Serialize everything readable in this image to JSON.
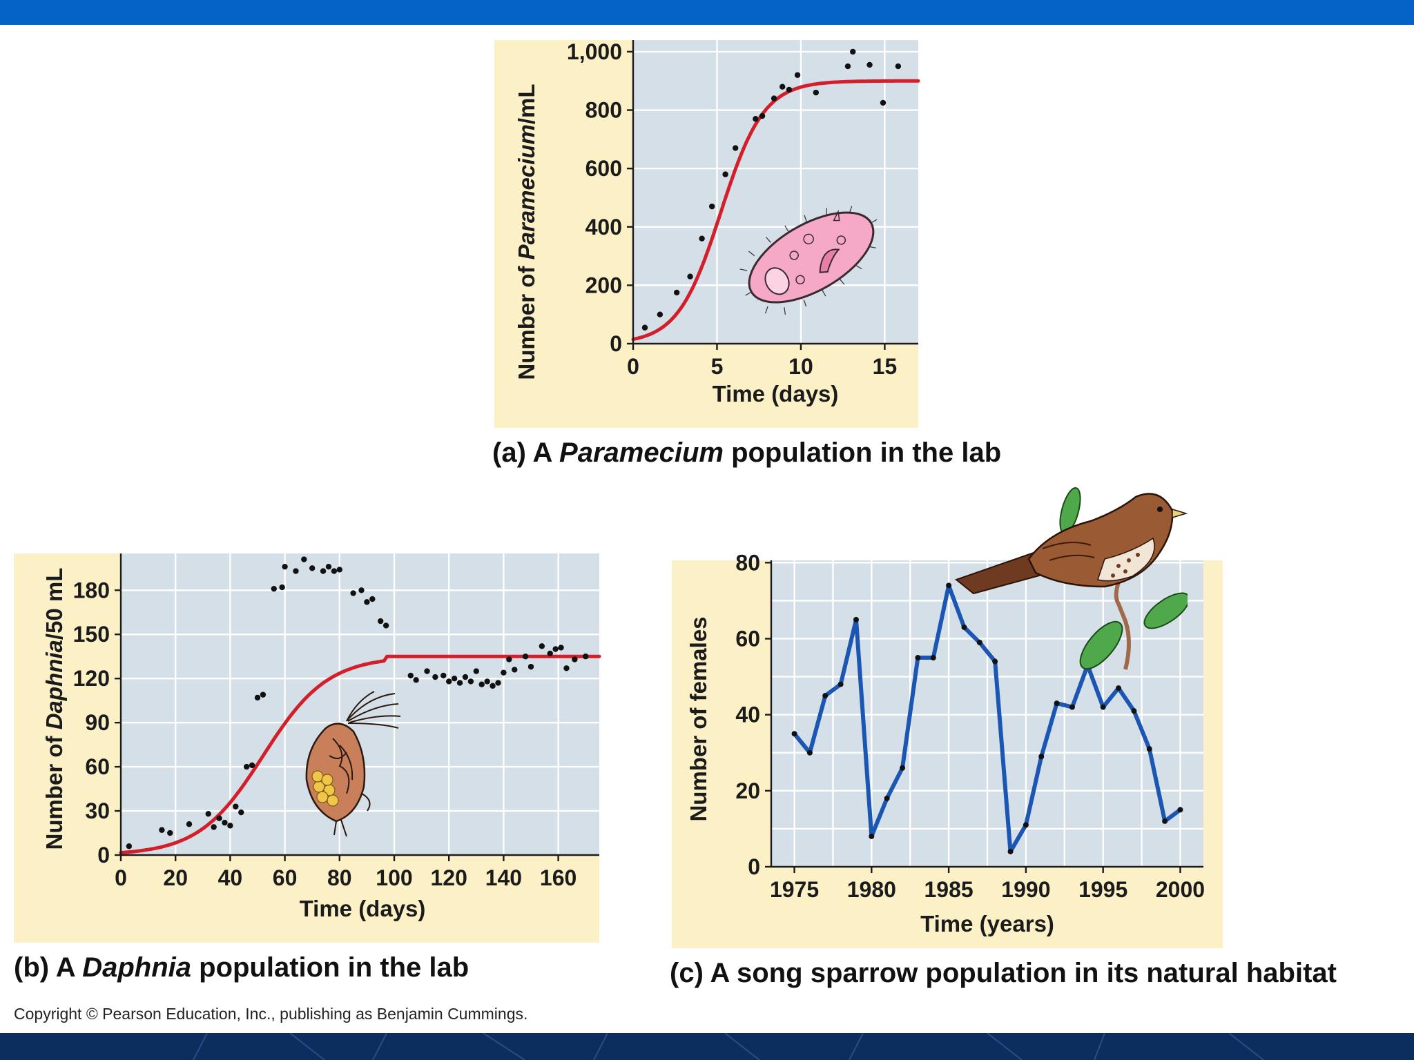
{
  "colors": {
    "top_bar": "#0563c8",
    "bottom_bar": "#0b2e5e",
    "panel_bg": "#fbf0c6",
    "plot_bg": "#d4dfe7",
    "logistic_curve": "#d21f2a",
    "sparrow_line": "#1a56b2"
  },
  "captions": {
    "a": {
      "prefix": "(a) A ",
      "italic": "Paramecium",
      "suffix": " population in the lab"
    },
    "b": {
      "prefix": "(b) A ",
      "italic": "Daphnia",
      "suffix": " population in the lab"
    },
    "c": {
      "text": "(c) A song sparrow population in its natural habitat"
    }
  },
  "copyright": "Copyright © Pearson Education, Inc., publishing as Benjamin Cummings.",
  "illustrations": [
    "paramecium-icon",
    "daphnia-icon",
    "song-sparrow-icon"
  ],
  "chart_data": [
    {
      "id": "paramecium",
      "type": "scatter",
      "title": "(a) A Paramecium population in the lab",
      "xlabel": "Time (days)",
      "ylabel": {
        "prefix": "Number of ",
        "italic": "Paramecium",
        "suffix": "/mL"
      },
      "xlim": [
        0,
        17
      ],
      "ylim": [
        0,
        1000
      ],
      "xticks": [
        0,
        5,
        10,
        15
      ],
      "xtick_labels": [
        "0",
        "5",
        "10",
        "15"
      ],
      "yticks": [
        0,
        200,
        400,
        600,
        800,
        1000
      ],
      "ytick_labels": [
        "0",
        "200",
        "400",
        "600",
        "800",
        "1,000"
      ],
      "grid": true,
      "points": {
        "x": [
          0.7,
          1.6,
          2.6,
          3.4,
          4.1,
          4.7,
          5.5,
          6.1,
          7.3,
          7.7,
          8.4,
          8.9,
          9.3,
          9.8,
          10.9,
          12.8,
          13.1,
          14.1,
          14.9,
          15.8
        ],
        "y": [
          55,
          100,
          175,
          230,
          360,
          470,
          580,
          670,
          770,
          780,
          840,
          880,
          870,
          920,
          860,
          950,
          1000,
          955,
          825,
          950
        ]
      },
      "curve": {
        "model": "logistic",
        "K": 900,
        "N0": 15,
        "r": 0.78
      }
    },
    {
      "id": "daphnia",
      "type": "scatter",
      "title": "(b) A Daphnia population in the lab",
      "xlabel": "Time (days)",
      "ylabel": {
        "prefix": "Number of ",
        "italic": "Daphnia",
        "suffix": "/50 mL"
      },
      "xlim": [
        0,
        175
      ],
      "ylim": [
        0,
        200
      ],
      "xticks": [
        0,
        20,
        40,
        60,
        80,
        100,
        120,
        140,
        160
      ],
      "xtick_labels": [
        "0",
        "20",
        "40",
        "60",
        "80",
        "100",
        "120",
        "140",
        "160"
      ],
      "yticks": [
        0,
        30,
        60,
        90,
        120,
        150,
        180
      ],
      "ytick_labels": [
        "0",
        "30",
        "60",
        "90",
        "120",
        "150",
        "180"
      ],
      "grid": true,
      "points": {
        "x": [
          3,
          15,
          18,
          25,
          32,
          34,
          36,
          38,
          40,
          42,
          44,
          46,
          48,
          50,
          52,
          56,
          59,
          60,
          64,
          67,
          70,
          74,
          76,
          78,
          80,
          85,
          88,
          90,
          92,
          95,
          97,
          106,
          108,
          112,
          115,
          118,
          120,
          122,
          124,
          126,
          128,
          130,
          132,
          134,
          136,
          138,
          140,
          142,
          144,
          148,
          150,
          154,
          157,
          159,
          161,
          163,
          166,
          170
        ],
        "y": [
          6,
          17,
          15,
          21,
          28,
          19,
          25,
          22,
          20,
          33,
          29,
          60,
          61,
          107,
          109,
          181,
          182,
          196,
          193,
          201,
          195,
          193,
          196,
          193,
          194,
          178,
          180,
          172,
          174,
          159,
          156,
          122,
          119,
          125,
          121,
          122,
          118,
          120,
          117,
          121,
          118,
          125,
          116,
          118,
          115,
          117,
          124,
          133,
          126,
          135,
          128,
          142,
          137,
          140,
          141,
          127,
          133,
          135
        ]
      },
      "curve": {
        "model": "logistic",
        "K": 135,
        "N0": 1.6,
        "r": 0.085,
        "plateau_from_x": 97
      }
    },
    {
      "id": "sparrow",
      "type": "line",
      "title": "(c) A song sparrow population in its natural habitat",
      "xlabel": "Time (years)",
      "ylabel": {
        "text": "Number of females"
      },
      "xlim": [
        1973.5,
        2001.5
      ],
      "ylim": [
        0,
        80
      ],
      "xticks": [
        1975,
        1980,
        1985,
        1990,
        1995,
        2000
      ],
      "xtick_labels": [
        "1975",
        "1980",
        "1985",
        "1990",
        "1995",
        "2000"
      ],
      "yticks": [
        0,
        20,
        40,
        60,
        80
      ],
      "ytick_labels": [
        "0",
        "20",
        "40",
        "60",
        "80"
      ],
      "grid": true,
      "series": [
        {
          "name": "Song sparrow females",
          "x": [
            1975,
            1976,
            1977,
            1978,
            1979,
            1980,
            1981,
            1982,
            1983,
            1984,
            1985,
            1986,
            1987,
            1988,
            1989,
            1990,
            1991,
            1992,
            1993,
            1994,
            1995,
            1996,
            1997,
            1998,
            1999,
            2000
          ],
          "values": [
            35,
            30,
            45,
            48,
            65,
            8,
            18,
            26,
            55,
            55,
            74,
            63,
            59,
            54,
            4,
            11,
            29,
            43,
            42,
            53,
            42,
            47,
            41,
            31,
            12,
            15
          ]
        }
      ]
    }
  ]
}
